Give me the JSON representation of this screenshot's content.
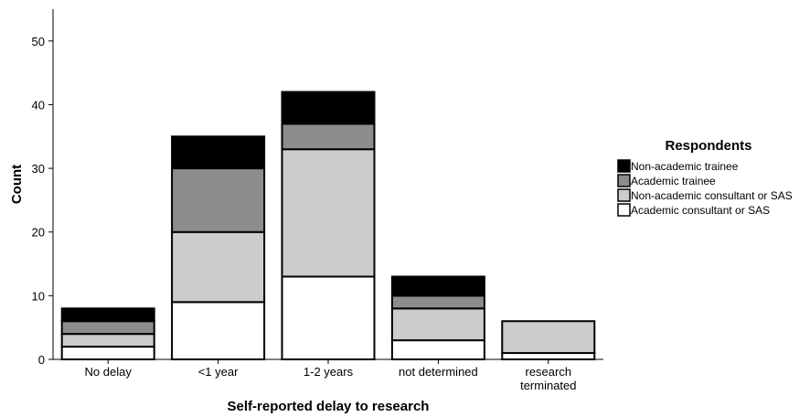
{
  "chart_data": {
    "type": "bar",
    "stacked": true,
    "categories": [
      [
        "No delay"
      ],
      [
        "<1 year"
      ],
      [
        "1-2 years"
      ],
      [
        "not determined"
      ],
      [
        "research",
        "terminated"
      ]
    ],
    "series": [
      {
        "name": "Academic consultant or SAS",
        "color": "#ffffff",
        "values": [
          2,
          9,
          13,
          3,
          1
        ]
      },
      {
        "name": "Non-academic consultant or SAS",
        "color": "#cccccc",
        "values": [
          2,
          11,
          20,
          5,
          5
        ]
      },
      {
        "name": "Academic trainee",
        "color": "#8c8c8c",
        "values": [
          2,
          10,
          4,
          2,
          0
        ]
      },
      {
        "name": "Non-academic trainee",
        "color": "#000000",
        "values": [
          2,
          5,
          5,
          3,
          0
        ]
      }
    ],
    "legend": {
      "title": "Respondents",
      "position": "right",
      "order": [
        "Non-academic trainee",
        "Academic trainee",
        "Non-academic consultant or SAS",
        "Academic consultant or SAS"
      ]
    },
    "xlabel": "Self-reported delay to research",
    "ylabel": "Count",
    "ylim": [
      0,
      55
    ],
    "yticks": [
      0,
      10,
      20,
      30,
      40,
      50
    ],
    "grid": false
  }
}
